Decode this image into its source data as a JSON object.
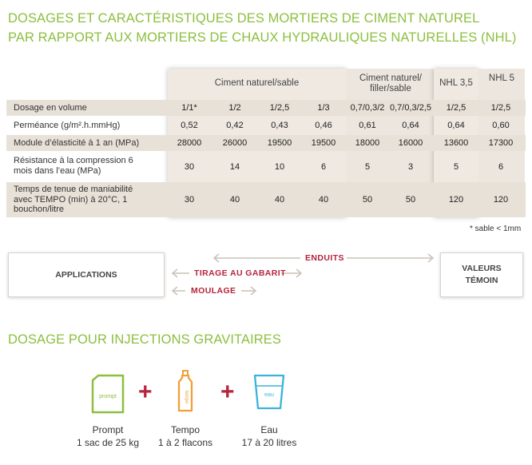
{
  "titles": {
    "line1": "DOSAGES ET CARACTÉRISTIQUES DES MORTIERS DE CIMENT NATUREL",
    "line2": "PAR RAPPORT AUX MORTIERS DE CHAUX HYDRAULIQUES NATURELLES (NHL)",
    "section2": "DOSAGE POUR INJECTIONS GRAVITAIRES"
  },
  "table": {
    "group_headers": [
      "Ciment naturel/sable",
      "Ciment naturel/ filler/sable",
      "NHL 3,5",
      "NHL 5"
    ],
    "rows": [
      {
        "label": "Dosage en volume",
        "values": [
          "1/1*",
          "1/2",
          "1/2,5",
          "1/3",
          "0,7/0,3/2",
          "0,7/0,3/2,5",
          "1/2,5",
          "1/2,5"
        ]
      },
      {
        "label": "Perméance (g/m².h.mmHg)",
        "values": [
          "0,52",
          "0,42",
          "0,43",
          "0,46",
          "0,61",
          "0,64",
          "0,64",
          "0,60"
        ]
      },
      {
        "label": "Module d’élasticité à 1 an (MPa)",
        "values": [
          "28000",
          "26000",
          "19500",
          "19500",
          "18000",
          "16000",
          "13600",
          "17300"
        ]
      },
      {
        "label": "Résistance à la compression 6 mois dans l’eau (MPa)",
        "values": [
          "30",
          "14",
          "10",
          "6",
          "5",
          "3",
          "5",
          "6"
        ]
      },
      {
        "label": "Temps de tenue de maniabilité avec TEMPO (min) à 20°C, 1 bouchon/litre",
        "values": [
          "30",
          "40",
          "40",
          "40",
          "50",
          "50",
          "120",
          "120"
        ]
      }
    ],
    "note": "* sable < 1mm"
  },
  "applications": {
    "left_box": "APPLICATIONS",
    "right_box": "VALEURS TÉMOIN",
    "arrows": [
      "ENDUITS",
      "TIRAGE AU GABARIT",
      "MOULAGE"
    ],
    "colors": {
      "enduits": "#b5253c",
      "tirage": "#b5253c",
      "moulage": "#b5253c",
      "arrow": "#c9c2b8"
    }
  },
  "products": [
    {
      "name": "Prompt",
      "qty": "1 sac de 25 kg",
      "icon_text": "prompt",
      "color": "#8cbf3f"
    },
    {
      "name": "Tempo",
      "qty": "1 à 2 flacons",
      "icon_text": "tempo",
      "color": "#f0a03a"
    },
    {
      "name": "Eau",
      "qty": "17 à 20 litres",
      "icon_text": "eau",
      "color": "#3bb3d9"
    }
  ]
}
